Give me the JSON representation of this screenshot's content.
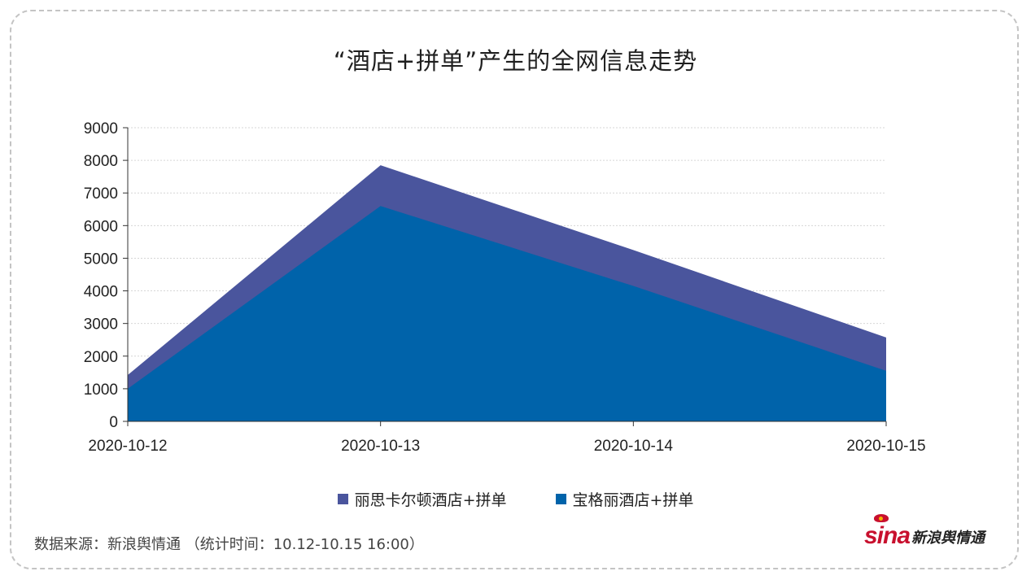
{
  "title": "“酒店+拼单”产生的全网信息走势",
  "chart_data": {
    "type": "area",
    "categories": [
      "2020-10-12",
      "2020-10-13",
      "2020-10-14",
      "2020-10-15"
    ],
    "yticks": [
      0,
      1000,
      2000,
      3000,
      4000,
      5000,
      6000,
      7000,
      8000,
      9000
    ],
    "ylim": [
      0,
      9000
    ],
    "grid": true,
    "legend_position": "bottom",
    "series": [
      {
        "name": "丽思卡尔顿酒店+拼单",
        "values": [
          1420,
          7850,
          5250,
          2570
        ],
        "color": "#4a559d"
      },
      {
        "name": "宝格丽酒店+拼单",
        "values": [
          1000,
          6600,
          4150,
          1550
        ],
        "color": "#0063aa"
      }
    ]
  },
  "footer": {
    "source": "数据来源：新浪舆情通 （统计时间：10.12-10.15 16:00）",
    "logo_text": "sina",
    "logo_cn": "新浪舆情通"
  }
}
